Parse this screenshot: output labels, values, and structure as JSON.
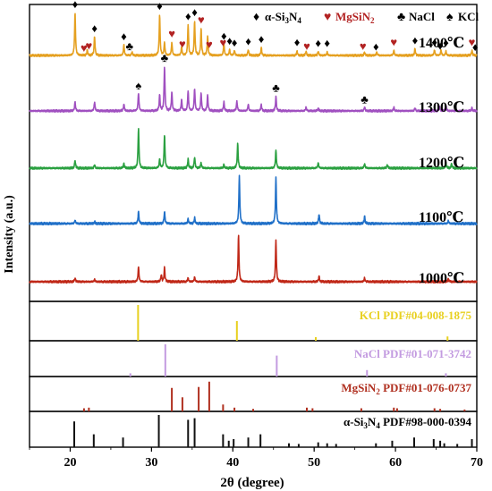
{
  "chart_data": {
    "type": "line",
    "xlabel": "2θ (degree)",
    "ylabel": "Intensity (a.u.)",
    "xlim": [
      15,
      70
    ],
    "xticks": [
      20,
      30,
      40,
      50,
      60,
      70
    ],
    "xtick_labels": [
      "20",
      "30",
      "40",
      "50",
      "60",
      "70"
    ],
    "legend": {
      "placement": "top-right",
      "entries": [
        {
          "symbol": "♦",
          "label_main": "α-Si",
          "sub1": "3",
          "mid": "N",
          "sub2": "4",
          "color": "#000000"
        },
        {
          "symbol": "♥",
          "label_main": "MgSiN",
          "sub1": "2",
          "mid": "",
          "sub2": "",
          "color": "#b22222"
        },
        {
          "symbol": "♣",
          "label_main": "NaCl",
          "sub1": "",
          "mid": "",
          "sub2": "",
          "color": "#000000"
        },
        {
          "symbol": "♠",
          "label_main": "KCl",
          "sub1": "",
          "mid": "",
          "sub2": "",
          "color": "#000000"
        }
      ]
    },
    "series": [
      {
        "label": "1400℃",
        "color": "#e5a020",
        "peaks": [
          [
            20.6,
            1.0
          ],
          [
            22.1,
            0.12
          ],
          [
            23.0,
            0.45
          ],
          [
            26.6,
            0.25
          ],
          [
            27.6,
            0.08
          ],
          [
            31.0,
            0.95
          ],
          [
            31.6,
            0.3
          ],
          [
            32.5,
            0.3
          ],
          [
            33.7,
            0.2
          ],
          [
            34.5,
            0.72
          ],
          [
            35.3,
            0.8
          ],
          [
            36.1,
            0.62
          ],
          [
            36.9,
            0.45
          ],
          [
            38.9,
            0.28
          ],
          [
            39.6,
            0.14
          ],
          [
            40.2,
            0.12
          ],
          [
            41.9,
            0.14
          ],
          [
            43.5,
            0.18
          ],
          [
            47.9,
            0.1
          ],
          [
            49.0,
            0.1
          ],
          [
            50.5,
            0.1
          ],
          [
            51.6,
            0.08
          ],
          [
            56.2,
            0.08
          ],
          [
            57.7,
            0.08
          ],
          [
            59.8,
            0.12
          ],
          [
            62.4,
            0.16
          ],
          [
            64.8,
            0.13
          ],
          [
            65.6,
            0.13
          ],
          [
            66.2,
            0.1
          ],
          [
            69.4,
            0.12
          ]
        ]
      },
      {
        "label": "1300℃",
        "color": "#a050c0",
        "peaks": [
          [
            20.6,
            0.2
          ],
          [
            23.0,
            0.2
          ],
          [
            26.6,
            0.15
          ],
          [
            28.4,
            0.4
          ],
          [
            31.0,
            0.35
          ],
          [
            31.6,
            1.0
          ],
          [
            32.5,
            0.42
          ],
          [
            33.7,
            0.25
          ],
          [
            34.5,
            0.45
          ],
          [
            35.3,
            0.5
          ],
          [
            36.1,
            0.4
          ],
          [
            36.9,
            0.35
          ],
          [
            38.9,
            0.2
          ],
          [
            40.5,
            0.22
          ],
          [
            41.9,
            0.15
          ],
          [
            43.5,
            0.14
          ],
          [
            45.3,
            0.32
          ],
          [
            49.0,
            0.08
          ],
          [
            50.5,
            0.06
          ],
          [
            56.2,
            0.09
          ],
          [
            59.8,
            0.08
          ],
          [
            62.4,
            0.07
          ],
          [
            65.4,
            0.1
          ],
          [
            66.2,
            0.12
          ],
          [
            69.4,
            0.07
          ]
        ]
      },
      {
        "label": "1200℃",
        "color": "#2aa040",
        "peaks": [
          [
            20.6,
            0.18
          ],
          [
            23.0,
            0.08
          ],
          [
            26.6,
            0.1
          ],
          [
            28.4,
            0.9
          ],
          [
            31.0,
            0.2
          ],
          [
            31.6,
            0.75
          ],
          [
            34.5,
            0.2
          ],
          [
            35.3,
            0.25
          ],
          [
            36.1,
            0.12
          ],
          [
            38.9,
            0.08
          ],
          [
            40.6,
            0.55
          ],
          [
            45.3,
            0.4
          ],
          [
            50.5,
            0.12
          ],
          [
            56.2,
            0.1
          ],
          [
            59.0,
            0.08
          ],
          [
            66.2,
            0.12
          ],
          [
            66.9,
            0.1
          ]
        ]
      },
      {
        "label": "1100℃",
        "color": "#2070c8",
        "peaks": [
          [
            20.6,
            0.07
          ],
          [
            23.0,
            0.04
          ],
          [
            28.4,
            0.25
          ],
          [
            31.6,
            0.25
          ],
          [
            34.5,
            0.1
          ],
          [
            35.3,
            0.12
          ],
          [
            40.8,
            1.0
          ],
          [
            45.3,
            0.95
          ],
          [
            50.6,
            0.2
          ],
          [
            56.2,
            0.15
          ],
          [
            66.5,
            0.06
          ]
        ]
      },
      {
        "label": "1000℃",
        "color": "#c02818",
        "peaks": [
          [
            20.6,
            0.08
          ],
          [
            23.0,
            0.05
          ],
          [
            28.4,
            0.32
          ],
          [
            31.2,
            0.15
          ],
          [
            31.6,
            0.3
          ],
          [
            34.5,
            0.08
          ],
          [
            35.3,
            0.1
          ],
          [
            40.7,
            1.0
          ],
          [
            45.3,
            0.9
          ],
          [
            50.6,
            0.12
          ],
          [
            56.2,
            0.08
          ],
          [
            66.5,
            0.06
          ]
        ]
      }
    ],
    "references": [
      {
        "label": "KCl PDF#04-008-1875",
        "label_main": "KCl PDF#04-008-1875",
        "color": "#e8d020",
        "lines": [
          [
            28.35,
            1.0
          ],
          [
            40.5,
            0.55
          ],
          [
            50.2,
            0.1
          ],
          [
            66.4,
            0.12
          ]
        ]
      },
      {
        "label": "NaCl PDF#01-071-3742",
        "label_main": "NaCl PDF#01-071-3742",
        "color": "#c39be0",
        "lines": [
          [
            27.4,
            0.1
          ],
          [
            31.7,
            1.0
          ],
          [
            45.4,
            0.65
          ],
          [
            56.5,
            0.2
          ],
          [
            66.2,
            0.1
          ]
        ]
      },
      {
        "label": "MgSiN2 PDF#01-076-0737",
        "label_main": "MgSiN",
        "sub": "2",
        "label_tail": " PDF#01-076-0737",
        "color": "#b03020",
        "lines": [
          [
            21.7,
            0.1
          ],
          [
            22.3,
            0.12
          ],
          [
            32.5,
            0.75
          ],
          [
            33.8,
            0.45
          ],
          [
            35.8,
            0.78
          ],
          [
            37.1,
            0.95
          ],
          [
            38.8,
            0.22
          ],
          [
            40.2,
            0.12
          ],
          [
            42.5,
            0.08
          ],
          [
            49.1,
            0.12
          ],
          [
            49.8,
            0.1
          ],
          [
            55.8,
            0.1
          ],
          [
            59.8,
            0.12
          ],
          [
            60.2,
            0.1
          ],
          [
            64.8,
            0.1
          ],
          [
            65.5,
            0.08
          ],
          [
            68.5,
            0.06
          ]
        ]
      },
      {
        "label": "α-Si3N4 PDF#98-000-0394",
        "label_main": "α-Si",
        "sub": "3",
        "label_mid": "N",
        "sub2": "4",
        "label_tail": " PDF#98-000-0394",
        "color": "#111111",
        "lines": [
          [
            20.5,
            0.8
          ],
          [
            22.9,
            0.4
          ],
          [
            26.5,
            0.3
          ],
          [
            30.9,
            1.0
          ],
          [
            34.5,
            0.85
          ],
          [
            35.3,
            0.9
          ],
          [
            38.8,
            0.4
          ],
          [
            39.5,
            0.2
          ],
          [
            40.1,
            0.25
          ],
          [
            41.9,
            0.3
          ],
          [
            43.4,
            0.4
          ],
          [
            46.9,
            0.12
          ],
          [
            48.1,
            0.1
          ],
          [
            50.5,
            0.15
          ],
          [
            51.6,
            0.12
          ],
          [
            52.7,
            0.1
          ],
          [
            57.6,
            0.12
          ],
          [
            59.6,
            0.2
          ],
          [
            62.3,
            0.3
          ],
          [
            64.7,
            0.25
          ],
          [
            65.5,
            0.2
          ],
          [
            66.0,
            0.12
          ],
          [
            67.6,
            0.1
          ],
          [
            69.4,
            0.25
          ]
        ]
      }
    ],
    "markers": [
      {
        "x": 20.6,
        "series": 0,
        "symbol": "♦",
        "color": "#000000"
      },
      {
        "x": 21.7,
        "series": 0,
        "symbol": "♥",
        "color": "#b22222"
      },
      {
        "x": 22.3,
        "series": 0,
        "symbol": "♥",
        "color": "#b22222"
      },
      {
        "x": 23.0,
        "series": 0,
        "symbol": "♦",
        "color": "#000000"
      },
      {
        "x": 26.6,
        "series": 0,
        "symbol": "♦",
        "color": "#000000"
      },
      {
        "x": 27.3,
        "series": 0,
        "symbol": "♣",
        "color": "#000000"
      },
      {
        "x": 31.0,
        "series": 0,
        "symbol": "♦",
        "color": "#000000"
      },
      {
        "x": 32.5,
        "series": 0,
        "symbol": "♥",
        "color": "#b22222"
      },
      {
        "x": 33.8,
        "series": 0,
        "symbol": "♥",
        "color": "#b22222"
      },
      {
        "x": 34.5,
        "series": 0,
        "symbol": "♦",
        "color": "#000000"
      },
      {
        "x": 35.3,
        "series": 0,
        "symbol": "♦",
        "color": "#000000"
      },
      {
        "x": 36.1,
        "series": 0,
        "symbol": "♥",
        "color": "#b22222"
      },
      {
        "x": 37.1,
        "series": 0,
        "symbol": "♥",
        "color": "#b22222"
      },
      {
        "x": 38.8,
        "series": 0,
        "symbol": "♥",
        "color": "#b22222"
      },
      {
        "x": 38.9,
        "series": 0,
        "symbol": "♦",
        "color": "#000000"
      },
      {
        "x": 39.6,
        "series": 0,
        "symbol": "♦",
        "color": "#000000"
      },
      {
        "x": 40.2,
        "series": 0,
        "symbol": "♦",
        "color": "#000000"
      },
      {
        "x": 41.9,
        "series": 0,
        "symbol": "♦",
        "color": "#000000"
      },
      {
        "x": 43.5,
        "series": 0,
        "symbol": "♦",
        "color": "#000000"
      },
      {
        "x": 47.9,
        "series": 0,
        "symbol": "♦",
        "color": "#000000"
      },
      {
        "x": 49.1,
        "series": 0,
        "symbol": "♥",
        "color": "#b22222"
      },
      {
        "x": 50.5,
        "series": 0,
        "symbol": "♦",
        "color": "#000000"
      },
      {
        "x": 51.6,
        "series": 0,
        "symbol": "♦",
        "color": "#000000"
      },
      {
        "x": 56.0,
        "series": 0,
        "symbol": "♥",
        "color": "#b22222"
      },
      {
        "x": 57.6,
        "series": 0,
        "symbol": "♦",
        "color": "#000000"
      },
      {
        "x": 59.8,
        "series": 0,
        "symbol": "♥",
        "color": "#b22222"
      },
      {
        "x": 62.4,
        "series": 0,
        "symbol": "♦",
        "color": "#000000"
      },
      {
        "x": 64.8,
        "series": 0,
        "symbol": "♦",
        "color": "#000000"
      },
      {
        "x": 65.5,
        "series": 0,
        "symbol": "♦",
        "color": "#000000"
      },
      {
        "x": 66.2,
        "series": 0,
        "symbol": "♦",
        "color": "#000000"
      },
      {
        "x": 69.4,
        "series": 0,
        "symbol": "♥",
        "color": "#b22222"
      },
      {
        "x": 69.8,
        "series": 0,
        "symbol": "♦",
        "color": "#000000"
      },
      {
        "x": 28.4,
        "series": 1,
        "symbol": "♠",
        "color": "#000000"
      },
      {
        "x": 31.6,
        "series": 1,
        "symbol": "♣",
        "color": "#000000"
      },
      {
        "x": 45.3,
        "series": 1,
        "symbol": "♣",
        "color": "#000000"
      },
      {
        "x": 56.2,
        "series": 1,
        "symbol": "♣",
        "color": "#000000"
      }
    ]
  }
}
